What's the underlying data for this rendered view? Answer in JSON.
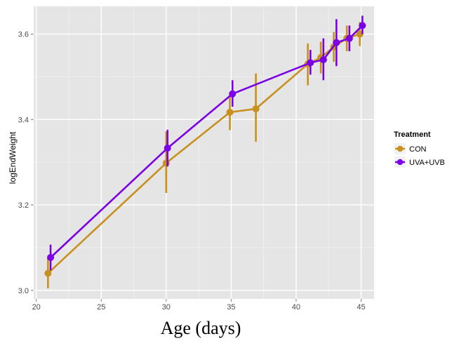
{
  "chart_data": {
    "type": "line",
    "xlabel": "Age (days)",
    "ylabel": "logEndWeight",
    "xlim": [
      19.8,
      46.0
    ],
    "ylim": [
      2.98,
      3.665
    ],
    "x_ticks": [
      20,
      25,
      30,
      35,
      40,
      45
    ],
    "y_ticks": [
      3.0,
      3.2,
      3.4,
      3.6
    ],
    "x_tick_labels": [
      "20",
      "25",
      "30",
      "35",
      "40",
      "45"
    ],
    "y_tick_labels": [
      "3.0",
      "3.2",
      "3.4",
      "3.6"
    ],
    "grid": true,
    "panel_background": "#e5e5e5",
    "legend": {
      "title": "Treatment",
      "position": "right"
    },
    "series": [
      {
        "name": "CON",
        "color": "#c8901f",
        "x": [
          20.9,
          30.0,
          34.9,
          36.9,
          40.9,
          41.9,
          42.9,
          43.9,
          44.9
        ],
        "y": [
          3.04,
          3.298,
          3.417,
          3.425,
          3.53,
          3.545,
          3.57,
          3.59,
          3.6
        ],
        "lower": [
          3.005,
          3.228,
          3.375,
          3.348,
          3.48,
          3.508,
          3.535,
          3.56,
          3.572
        ],
        "upper": [
          3.075,
          3.372,
          3.457,
          3.508,
          3.578,
          3.582,
          3.605,
          3.62,
          3.628
        ]
      },
      {
        "name": "UVA+UVB",
        "color": "#7b00e6",
        "x": [
          21.1,
          30.1,
          35.1,
          41.1,
          42.1,
          43.1,
          44.1,
          45.1
        ],
        "y": [
          3.077,
          3.333,
          3.46,
          3.533,
          3.54,
          3.58,
          3.59,
          3.62
        ],
        "lower": [
          3.047,
          3.29,
          3.43,
          3.505,
          3.492,
          3.525,
          3.56,
          3.6
        ],
        "upper": [
          3.107,
          3.376,
          3.492,
          3.563,
          3.59,
          3.635,
          3.62,
          3.643
        ]
      }
    ]
  }
}
